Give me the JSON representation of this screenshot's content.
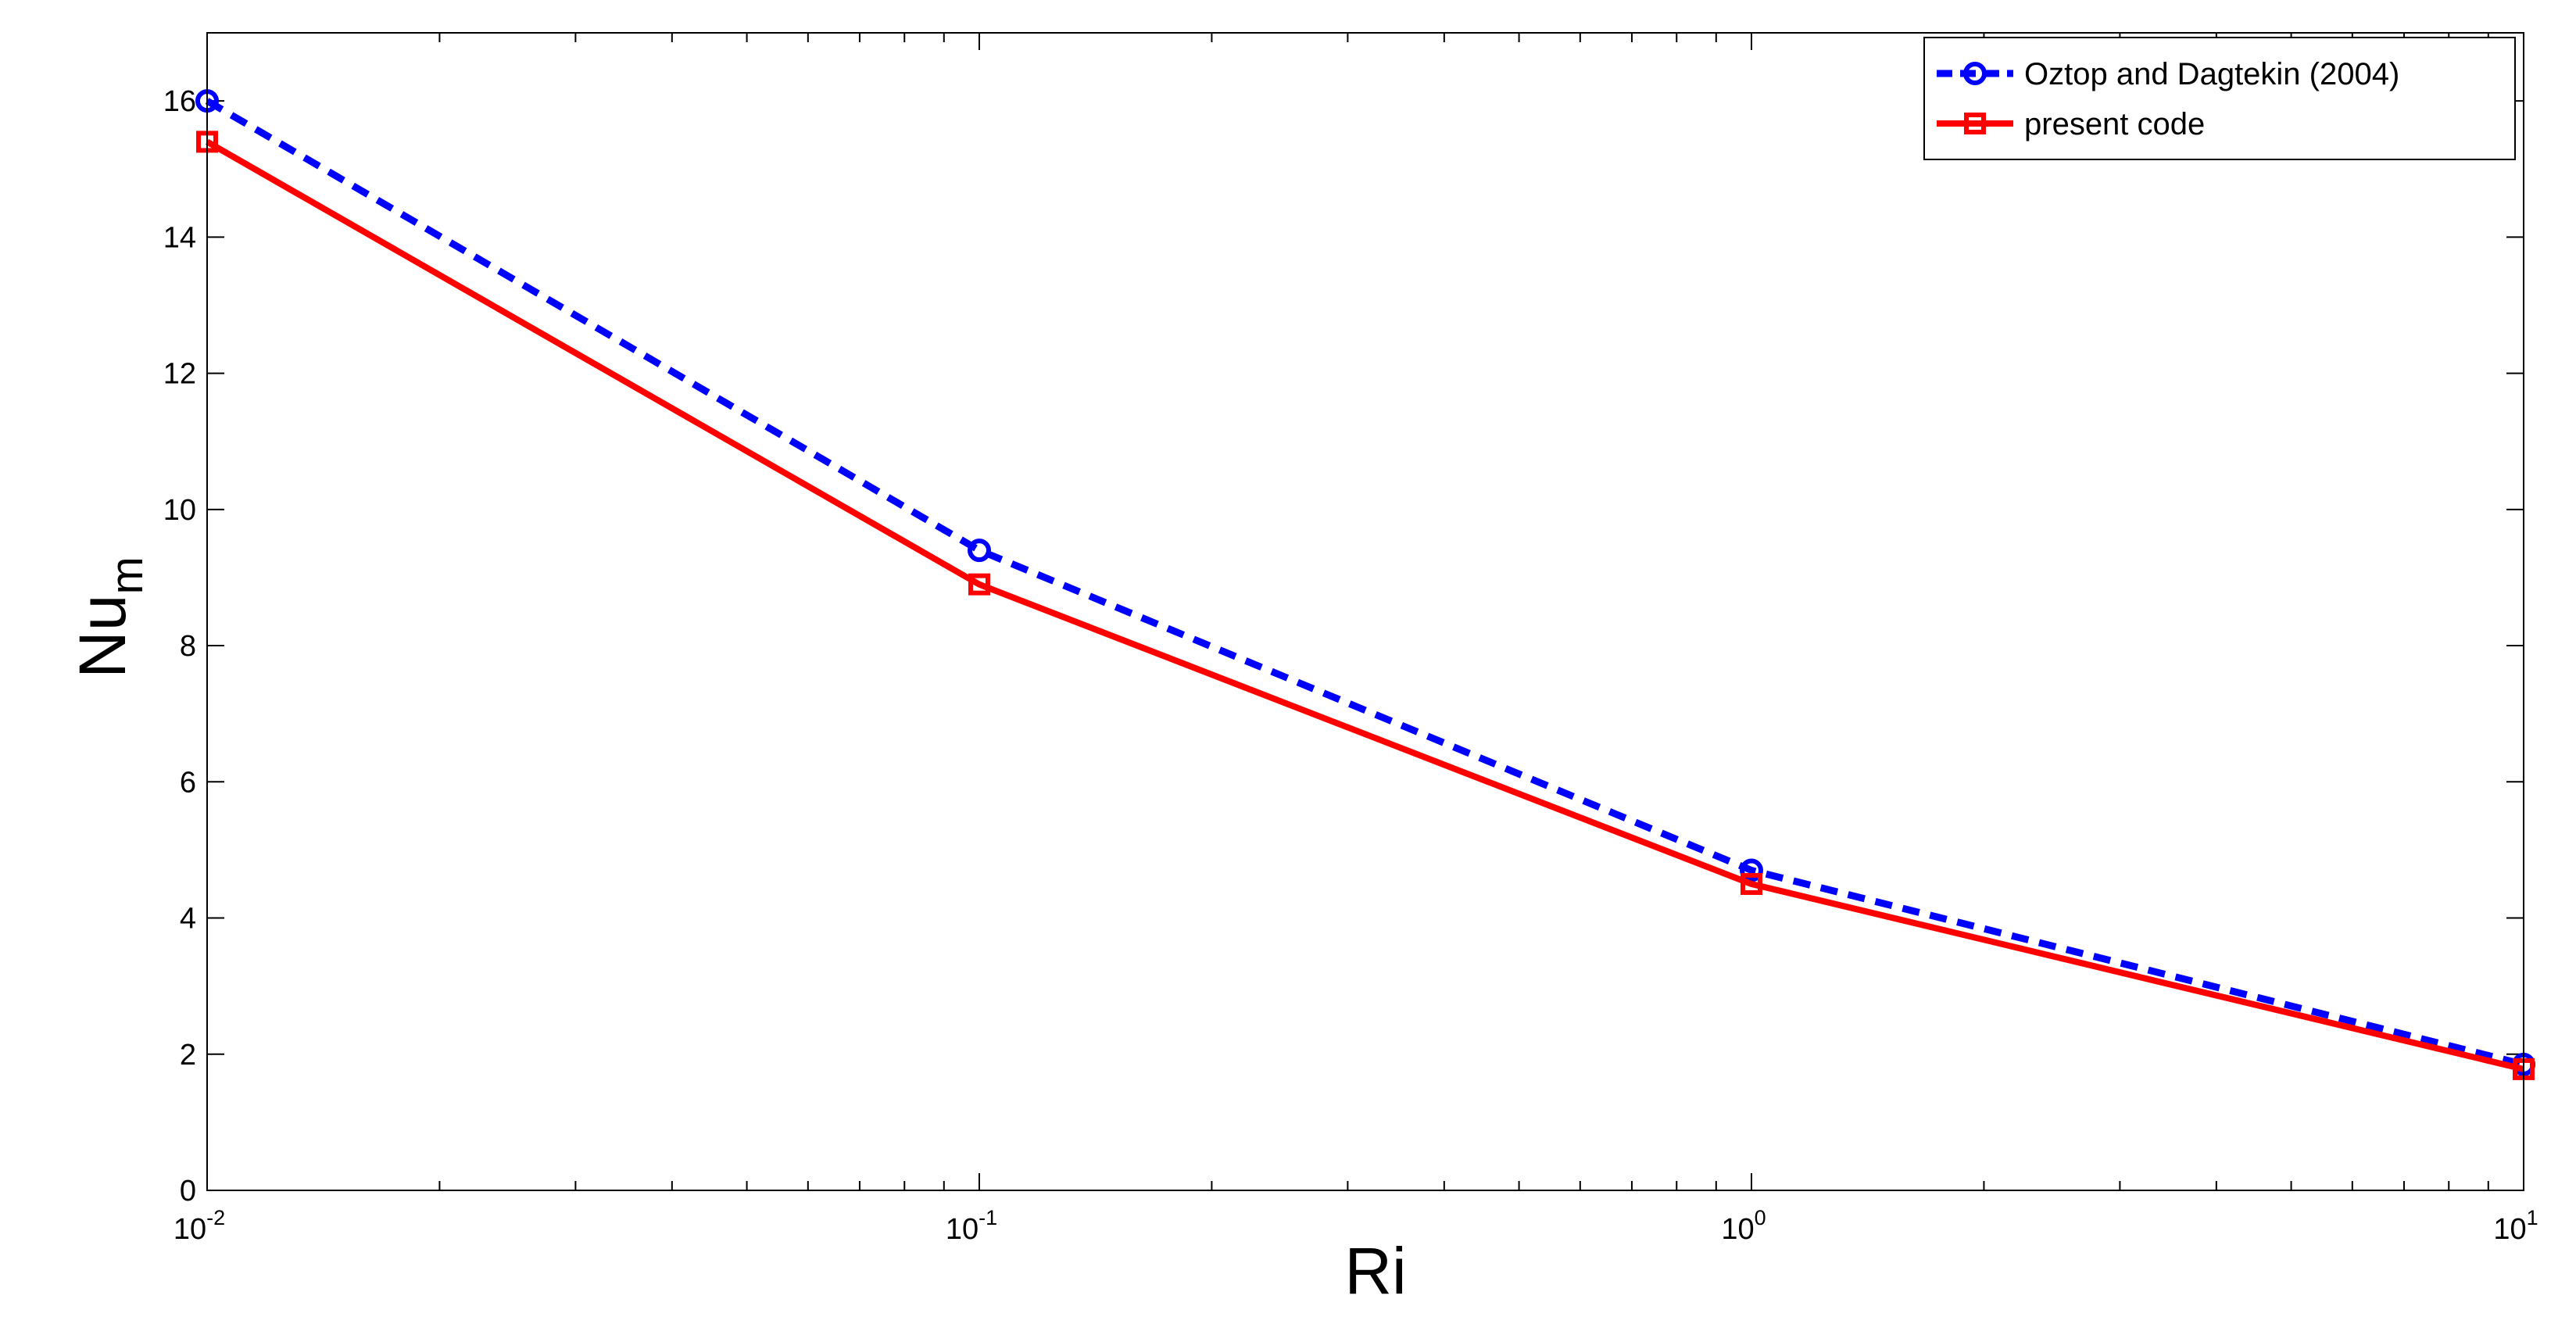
{
  "chart_data": {
    "type": "line",
    "xlabel": "Ri",
    "ylabel": "Nu",
    "ylabel_subscript": "m",
    "x_scale": "log",
    "xlim": [
      0.01,
      10
    ],
    "ylim": [
      0,
      17
    ],
    "grid": false,
    "legend_position": "top-right",
    "x_ticks": [
      {
        "value": 0.01,
        "base": "10",
        "exponent": "-2"
      },
      {
        "value": 0.1,
        "base": "10",
        "exponent": "-1"
      },
      {
        "value": 1,
        "base": "10",
        "exponent": "0"
      },
      {
        "value": 10,
        "base": "10",
        "exponent": "1"
      }
    ],
    "y_ticks": [
      {
        "value": 0,
        "label": "0"
      },
      {
        "value": 2,
        "label": "2"
      },
      {
        "value": 4,
        "label": "4"
      },
      {
        "value": 6,
        "label": "6"
      },
      {
        "value": 8,
        "label": "8"
      },
      {
        "value": 10,
        "label": "10"
      },
      {
        "value": 12,
        "label": "12"
      },
      {
        "value": 14,
        "label": "14"
      },
      {
        "value": 16,
        "label": "16"
      }
    ],
    "x": [
      0.01,
      0.1,
      1,
      10
    ],
    "series": [
      {
        "name": "Oztop and Dagtekin (2004)",
        "values": [
          16.0,
          9.4,
          4.7,
          1.85
        ],
        "color": "#0000ff",
        "line": "dashed",
        "marker": "circle"
      },
      {
        "name": "present code",
        "values": [
          15.4,
          8.9,
          4.5,
          1.78
        ],
        "color": "#ff0000",
        "line": "solid",
        "marker": "square"
      }
    ]
  }
}
